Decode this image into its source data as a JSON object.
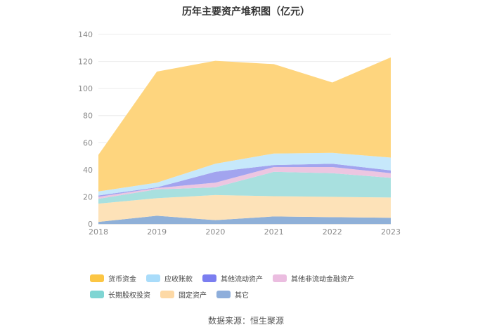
{
  "chart_data": {
    "type": "area",
    "stacked": true,
    "title": "历年主要资产堆积图（亿元）",
    "x": [
      "2018",
      "2019",
      "2020",
      "2021",
      "2022",
      "2023"
    ],
    "ylim": [
      0,
      140
    ],
    "yticks": [
      0,
      20,
      40,
      60,
      80,
      100,
      120,
      140
    ],
    "grid": true,
    "legend_position": "bottom",
    "series": [
      {
        "name": "其它",
        "color": "#8fb0d8",
        "values": [
          1.5,
          6.0,
          2.8,
          5.5,
          5.0,
          4.5
        ]
      },
      {
        "name": "固定资产",
        "color": "#fde2b8",
        "values": [
          13.5,
          13.0,
          18.5,
          15.0,
          15.0,
          15.0
        ]
      },
      {
        "name": "长期股权投资",
        "color": "#a8e0df",
        "values": [
          3.5,
          6.5,
          5.7,
          18.0,
          17.5,
          14.5
        ]
      },
      {
        "name": "其他非流动金融资产",
        "color": "#ecc6e1",
        "values": [
          1.5,
          1.0,
          3.5,
          3.5,
          4.5,
          3.5
        ]
      },
      {
        "name": "其他流动资产",
        "color": "#a2a4ef",
        "values": [
          1.0,
          0.5,
          8.0,
          1.5,
          2.5,
          2.0
        ]
      },
      {
        "name": "应收账款",
        "color": "#c6e8fb",
        "values": [
          3.0,
          3.5,
          6.0,
          8.5,
          8.0,
          9.5
        ]
      },
      {
        "name": "货币资金",
        "color": "#fed57e",
        "values": [
          27.0,
          82.0,
          76.0,
          66.0,
          52.0,
          74.0
        ]
      }
    ],
    "legend_order": [
      "货币资金",
      "应收账款",
      "其他流动资产",
      "其他非流动金融资产",
      "长期股权投资",
      "固定资产",
      "其它"
    ],
    "legend_colors": {
      "货币资金": "#fcc644",
      "应收账款": "#a9dcfa",
      "其他流动资产": "#7b7ef0",
      "其他非流动金融资产": "#ebbde0",
      "长期股权投资": "#7fd5d3",
      "固定资产": "#fdd9a6",
      "其它": "#8eaedb"
    },
    "source": "数据来源：恒生聚源"
  }
}
